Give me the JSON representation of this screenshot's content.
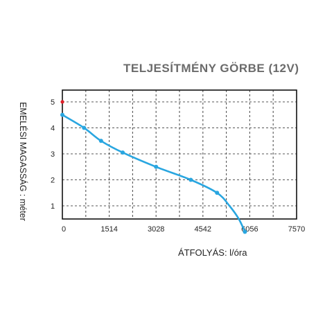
{
  "chart_data": {
    "type": "line",
    "title": "TELJESÍTMÉNY GÖRBE (12V)",
    "xlabel": "ÁTFOLYÁS: l/óra",
    "ylabel": "EMELÉSI MAGASSÁG : méter",
    "xlim": [
      0,
      7570
    ],
    "ylim": [
      0.5,
      5
    ],
    "x_ticks": [
      "0",
      "1514",
      "3028",
      "4542",
      "6056",
      "7570"
    ],
    "x_tick_values": [
      0,
      1514,
      3028,
      4542,
      6056,
      7570
    ],
    "y_ticks": [
      "1",
      "2",
      "3",
      "4",
      "5"
    ],
    "y_tick_values": [
      1,
      2,
      3,
      4,
      5
    ],
    "grid": true,
    "legend": "none",
    "colors": {
      "line": "#29a6e0",
      "marker": "#29a6e0",
      "max_marker": "#e0202a",
      "grid": "#555555",
      "axis": "#111111",
      "title": "#6b6b6b"
    },
    "series": [
      {
        "x": [
          0,
          700,
          1250,
          1950,
          3028,
          4150,
          5000,
          5400,
          5700,
          5900
        ],
        "y": [
          4.5,
          4.0,
          3.5,
          3.05,
          2.5,
          2.0,
          1.5,
          1.0,
          0.5,
          0.0
        ]
      }
    ],
    "markers": [
      {
        "x": 0,
        "y": 4.5
      },
      {
        "x": 700,
        "y": 4.0
      },
      {
        "x": 1250,
        "y": 3.5
      },
      {
        "x": 1950,
        "y": 3.05
      },
      {
        "x": 3028,
        "y": 2.5
      },
      {
        "x": 4150,
        "y": 2.0
      },
      {
        "x": 5000,
        "y": 1.5
      },
      {
        "x": 5900,
        "y": 0.0
      }
    ],
    "max_head_marker": {
      "x": 0,
      "y": 5
    }
  }
}
